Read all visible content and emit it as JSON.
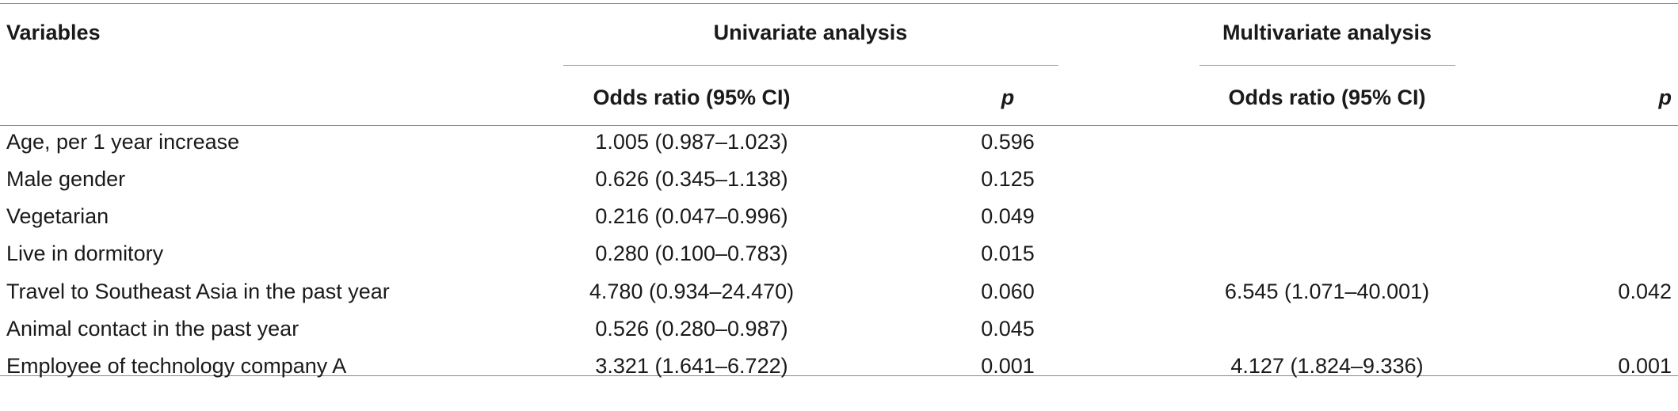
{
  "table": {
    "headers": {
      "variables": "Variables",
      "univariate": "Univariate analysis",
      "multivariate": "Multivariate analysis",
      "uni_or": "Odds ratio (95% CI)",
      "uni_p": "p",
      "multi_or": "Odds ratio (95% CI)",
      "multi_p": "p"
    },
    "rows": [
      {
        "variable": "Age, per 1 year increase",
        "uni_or": "1.005 (0.987–1.023)",
        "uni_p": "0.596",
        "multi_or": "",
        "multi_p": ""
      },
      {
        "variable": "Male gender",
        "uni_or": "0.626 (0.345–1.138)",
        "uni_p": "0.125",
        "multi_or": "",
        "multi_p": ""
      },
      {
        "variable": "Vegetarian",
        "uni_or": "0.216 (0.047–0.996)",
        "uni_p": "0.049",
        "multi_or": "",
        "multi_p": ""
      },
      {
        "variable": "Live in dormitory",
        "uni_or": "0.280 (0.100–0.783)",
        "uni_p": "0.015",
        "multi_or": "",
        "multi_p": ""
      },
      {
        "variable": "Travel to Southeast Asia in the past year",
        "uni_or": "4.780 (0.934–24.470)",
        "uni_p": "0.060",
        "multi_or": "6.545 (1.071–40.001)",
        "multi_p": "0.042"
      },
      {
        "variable": "Animal contact in the past year",
        "uni_or": "0.526 (0.280–0.987)",
        "uni_p": "0.045",
        "multi_or": "",
        "multi_p": ""
      },
      {
        "variable": "Employee of technology company A",
        "uni_or": "3.321 (1.641–6.722)",
        "uni_p": "0.001",
        "multi_or": "4.127 (1.824–9.336)",
        "multi_p": "0.001"
      }
    ]
  }
}
